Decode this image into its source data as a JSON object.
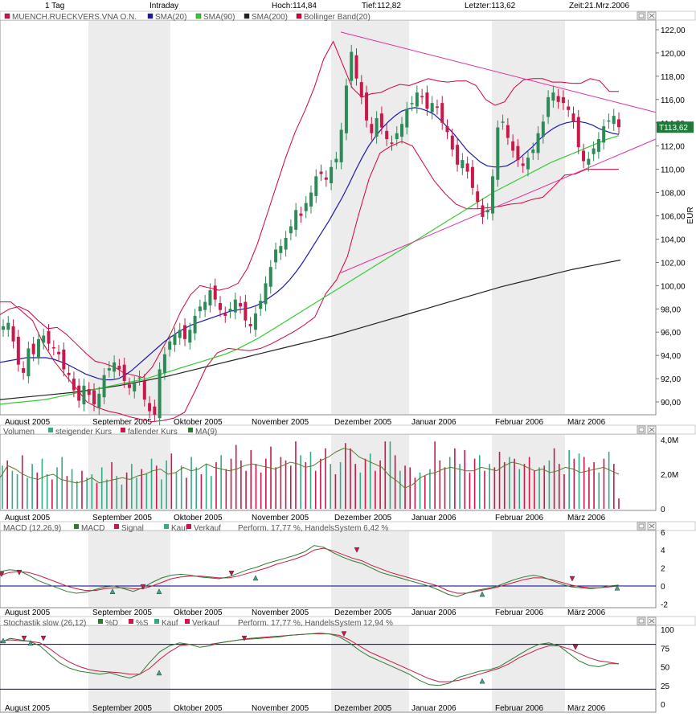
{
  "header": {
    "period": "1 Tag",
    "mode": "Intraday",
    "high": "Hoch:114,84",
    "low": "Tief:112,82",
    "last": "Letzter:113,62",
    "time": "Zeit:21.Mrz.2006"
  },
  "colors": {
    "price_up": "#2e8b57",
    "price_down": "#c8194a",
    "sma20": "#1a1aa8",
    "sma90": "#33cc33",
    "sma200": "#222222",
    "bollinger": "#d4003c",
    "trendline": "#e030a0",
    "macd": "#2f7a2f",
    "signal": "#c8194a",
    "month_shade": "#ececec"
  },
  "chart_data": [
    {
      "type": "candlestick",
      "name": "price_panel",
      "legend": [
        "MUENCH.RUECKVERS.VNA O.N.",
        "SMA(20)",
        "SMA(90)",
        "SMA(200)",
        "Bollinger Band(20)"
      ],
      "currency": "EUR",
      "last_price_label": "113,62",
      "ylim": [
        88.8,
        123.0
      ],
      "yticks": [
        "90,00",
        "92,00",
        "94,00",
        "96,00",
        "98,00",
        "100,00",
        "102,00",
        "104,00",
        "106,00",
        "108,00",
        "110,00",
        "112,00",
        "114,00",
        "116,00",
        "118,00",
        "120,00",
        "122,00"
      ],
      "xticks": [
        "August 2005",
        "September 2005",
        "Oktober 2005",
        "November 2005",
        "Dezember 2005",
        "Januar 2006",
        "Februar 2006",
        "März 2006"
      ],
      "close": [
        96.5,
        96.8,
        95.2,
        93.2,
        92.5,
        94.6,
        94.1,
        95.4,
        95.7,
        95.0,
        94.6,
        94.1,
        92.8,
        92.3,
        91.0,
        90.1,
        91.4,
        90.6,
        89.8,
        90.7,
        92.3,
        92.9,
        93.4,
        92.8,
        91.8,
        91.2,
        91.6,
        92.1,
        90.2,
        89.2,
        88.9,
        92.8,
        94.1,
        95.2,
        95.8,
        96.2,
        95.4,
        96.2,
        97.4,
        98.2,
        98.6,
        99.6,
        98.8,
        97.9,
        97.4,
        98.0,
        98.8,
        98.2,
        97.0,
        96.5,
        97.6,
        98.7,
        100.2,
        101.6,
        103.1,
        103.4,
        104.1,
        105.1,
        106.5,
        106.0,
        107.1,
        108.0,
        109.4,
        109.6,
        109.1,
        110.2,
        110.9,
        113.4,
        117.2,
        120.1,
        117.8,
        116.2,
        114.2,
        113.1,
        114.4,
        113.6,
        112.6,
        112.2,
        113.1,
        113.9,
        115.2,
        115.7,
        116.6,
        116.2,
        115.2,
        115.7,
        115.3,
        114.0,
        113.2,
        111.7,
        110.4,
        110.8,
        109.8,
        108.4,
        107.2,
        105.9,
        106.5,
        109.4,
        113.6,
        114.1,
        112.7,
        111.6,
        110.8,
        110.3,
        111.0,
        111.7,
        113.1,
        114.1,
        116.2,
        116.6,
        115.8,
        115.7,
        115.1,
        114.1,
        111.9,
        110.7,
        110.9,
        111.8,
        112.6,
        113.7,
        114.2,
        114.6,
        113.62
      ],
      "sma20": [
        93.4,
        93.5,
        93.6,
        93.7,
        93.8,
        93.8,
        93.8,
        93.8,
        93.7,
        93.5,
        93.3,
        93.0,
        92.7,
        92.4,
        92.2,
        92.0,
        91.9,
        91.9,
        92.0,
        92.3,
        92.7,
        93.2,
        93.7,
        94.2,
        94.7,
        95.2,
        95.6,
        96.0,
        96.3,
        96.6,
        96.8,
        97.0,
        97.2,
        97.4,
        97.6,
        97.8,
        97.9,
        98.0,
        98.1,
        98.3,
        98.6,
        99.0,
        99.4,
        99.9,
        100.5,
        101.2,
        102.0,
        102.9,
        103.8,
        104.7,
        105.6,
        106.6,
        107.6,
        108.7,
        109.9,
        111.0,
        112.0,
        112.8,
        113.5,
        114.1,
        114.6,
        115.0,
        115.2,
        115.3,
        115.2,
        115.0,
        114.7,
        114.2,
        113.6,
        113.0,
        112.3,
        111.6,
        111.1,
        110.6,
        110.3,
        110.2,
        110.2,
        110.3,
        110.6,
        111.0,
        111.5,
        112.0,
        112.6,
        113.1,
        113.5,
        113.8,
        114.0,
        114.1,
        114.1,
        114.0,
        113.8,
        113.5,
        113.3,
        113.1,
        113.0
      ],
      "sma90": [
        89.8,
        89.9,
        90.0,
        90.1,
        90.2,
        90.4,
        90.6,
        90.8,
        91.0,
        91.2,
        91.4,
        91.6,
        91.8,
        92.0,
        92.3,
        92.6,
        92.9,
        93.2,
        93.5,
        93.8,
        94.1,
        94.5,
        95.0,
        95.5,
        96.1,
        96.7,
        97.3,
        97.9,
        98.5,
        99.1,
        99.7,
        100.3,
        100.9,
        101.5,
        102.1,
        102.7,
        103.3,
        103.9,
        104.5,
        105.1,
        105.7,
        106.3,
        106.9,
        107.5,
        108.1,
        108.6,
        109.1,
        109.6,
        110.1,
        110.6,
        111.0,
        111.4,
        111.8,
        112.2,
        112.6,
        112.9
      ],
      "sma200": [
        90.2,
        90.4,
        90.6,
        90.8,
        91.1,
        91.4,
        91.8,
        92.2,
        92.7,
        93.2,
        93.7,
        94.2,
        94.7,
        95.2,
        95.7,
        96.3,
        96.9,
        97.5,
        98.1,
        98.7,
        99.3,
        99.9,
        100.4,
        100.9,
        101.4,
        101.8,
        102.2
      ],
      "bollinger_upper": [
        97.5,
        98.0,
        98.2,
        97.8,
        97.0,
        96.3,
        96.4,
        95.8,
        95.0,
        94.2,
        93.5,
        93.3,
        93.0,
        92.5,
        92.3,
        92.1,
        93.0,
        94.5,
        96.0,
        97.8,
        99.2,
        100.0,
        99.8,
        99.6,
        99.8,
        100.2,
        101.5,
        103.5,
        106.0,
        108.5,
        111.0,
        113.2,
        115.0,
        117.0,
        119.5,
        121.0,
        119.0,
        117.0,
        116.2,
        116.5,
        116.6,
        117.0,
        117.3,
        117.2,
        117.5,
        117.8,
        117.6,
        117.5,
        117.6,
        117.6,
        117.2,
        116.0,
        115.5,
        115.8,
        117.0,
        117.7,
        117.8,
        117.8,
        117.5,
        117.5,
        117.4,
        117.4,
        117.8,
        117.6,
        116.7,
        116.7
      ],
      "bollinger_lower": [
        98.6,
        98.6,
        97.8,
        97.0,
        95.0,
        93.5,
        92.3,
        91.2,
        90.0,
        89.5,
        89.2,
        89.0,
        88.7,
        88.5,
        88.3,
        88.4,
        88.6,
        89.1,
        91.0,
        93.0,
        94.2,
        94.6,
        94.5,
        94.4,
        94.6,
        95.0,
        95.5,
        96.0,
        96.6,
        97.3,
        99.3,
        100.5,
        102.5,
        106.0,
        109.2,
        111.4,
        112.0,
        112.4,
        112.0,
        110.5,
        109.0,
        107.9,
        107.0,
        106.6,
        106.6,
        106.7,
        106.8,
        107.0,
        107.1,
        107.4,
        107.6,
        108.5,
        109.5,
        109.6,
        110.0,
        110.0,
        110.0,
        110.0
      ]
    },
    {
      "type": "bar",
      "name": "volume_panel",
      "legend": [
        "Volumen",
        "steigender Kurs",
        "fallender Kurs",
        "MA(9)"
      ],
      "yticks": [
        "4,0M",
        "2,0M",
        "0"
      ],
      "ylim": [
        0,
        4.0
      ],
      "unit": "M",
      "values": [
        2.5,
        2.8,
        2.2,
        2.0,
        3.1,
        1.8,
        2.6,
        2.1,
        2.9,
        2.0,
        1.7,
        2.4,
        3.0,
        1.9,
        2.3,
        1.6,
        2.2,
        1.8,
        2.0,
        1.5,
        2.4,
        1.7,
        2.7,
        1.9,
        1.4,
        2.1,
        2.6,
        1.8,
        2.3,
        2.0,
        2.9,
        2.5,
        1.7,
        2.8,
        3.2,
        2.1,
        2.5,
        1.8,
        3.0,
        2.4,
        2.0,
        2.6,
        1.9,
        2.7,
        3.1,
        2.3,
        2.9,
        3.7,
        2.8,
        2.2,
        3.4,
        2.6,
        2.1,
        2.9,
        3.6,
        2.4,
        3.0,
        2.8,
        2.5,
        3.9,
        3.1,
        2.7,
        3.3,
        2.2,
        2.9,
        3.5,
        2.6,
        2.0,
        2.7,
        3.8,
        3.5,
        2.6,
        2.1,
        2.9,
        3.2,
        2.2,
        2.8,
        3.9,
        3.9,
        3.1,
        2.2,
        2.5,
        2.4,
        1.8,
        2.1,
        1.9,
        2.3,
        3.9,
        2.8,
        2.4,
        3.0,
        3.5,
        2.6,
        3.4,
        2.1,
        2.9,
        3.1,
        2.2,
        2.6,
        2.4,
        3.3,
        2.7,
        3.0,
        2.9,
        2.3,
        2.6,
        3.0,
        2.2,
        2.4,
        2.5,
        2.8,
        3.5,
        2.6,
        2.0,
        3.4,
        2.9,
        3.2,
        3.0,
        2.4,
        2.7,
        2.1,
        2.9,
        3.3,
        2.6,
        0.6
      ],
      "ma9": [
        1.8,
        2.5,
        2.3,
        2.0,
        1.8,
        1.7,
        1.9,
        2.0,
        1.7,
        1.6,
        1.5,
        1.6,
        1.8,
        1.5,
        1.6,
        1.7,
        1.8,
        1.7,
        1.9,
        2.0,
        2.2,
        2.3,
        2.0,
        2.1,
        2.4,
        2.2,
        2.3,
        2.6,
        2.4,
        2.3,
        2.2,
        2.3,
        2.5,
        2.6,
        2.5,
        2.4,
        2.3,
        2.5,
        2.7,
        2.6,
        2.4,
        2.5,
        2.8,
        3.0,
        3.3,
        3.5,
        3.4,
        3.0,
        2.8,
        2.6,
        2.4,
        1.9,
        1.6,
        1.2,
        1.4,
        1.8,
        2.0,
        2.1,
        2.3,
        2.4,
        2.3,
        2.2,
        2.2,
        2.4,
        2.3,
        2.2,
        2.5,
        2.7,
        2.6,
        2.4,
        2.2,
        2.3,
        2.1,
        2.2,
        2.4,
        2.3,
        2.1,
        2.2,
        2.3,
        2.4,
        2.2,
        2.0
      ]
    },
    {
      "type": "line",
      "name": "macd_panel",
      "legend": [
        "MACD (12,26,9)",
        "MACD",
        "Signal",
        "Kauf",
        "Verkauf",
        "Perform. 17,77 %, HandelsSystem 6,42 %"
      ],
      "yticks": [
        "6",
        "4",
        "2",
        "0",
        "-2"
      ],
      "ylim": [
        -2.8,
        6.2
      ],
      "macd": [
        1.6,
        1.8,
        1.7,
        1.2,
        0.6,
        0.2,
        -0.2,
        -0.6,
        -0.8,
        -0.7,
        -0.4,
        -0.1,
        0.0,
        -0.3,
        -0.6,
        -0.2,
        0.4,
        0.9,
        1.2,
        1.3,
        1.2,
        1.0,
        0.9,
        0.8,
        1.0,
        1.4,
        1.8,
        2.1,
        2.5,
        2.8,
        3.1,
        3.4,
        3.8,
        4.5,
        4.3,
        3.7,
        3.2,
        2.8,
        2.5,
        2.0,
        1.5,
        1.2,
        0.9,
        0.6,
        0.3,
        0.0,
        -0.4,
        -0.9,
        -1.2,
        -0.8,
        -0.5,
        -0.3,
        -0.1,
        0.3,
        0.7,
        1.0,
        1.2,
        1.0,
        0.6,
        0.2,
        -0.1,
        -0.2,
        -0.3,
        -0.2,
        0.0,
        0.1
      ],
      "signal": [
        1.2,
        1.5,
        1.6,
        1.5,
        1.2,
        0.8,
        0.4,
        0.0,
        -0.3,
        -0.5,
        -0.5,
        -0.3,
        -0.2,
        -0.2,
        -0.3,
        -0.3,
        0.0,
        0.4,
        0.8,
        1.0,
        1.1,
        1.1,
        1.0,
        0.9,
        0.9,
        1.1,
        1.4,
        1.7,
        2.0,
        2.4,
        2.7,
        3.0,
        3.4,
        4.0,
        4.2,
        3.9,
        3.5,
        3.1,
        2.8,
        2.3,
        1.9,
        1.5,
        1.2,
        0.9,
        0.6,
        0.3,
        0.0,
        -0.5,
        -0.8,
        -0.8,
        -0.6,
        -0.4,
        -0.2,
        0.1,
        0.4,
        0.7,
        0.9,
        0.9,
        0.7,
        0.4,
        0.1,
        -0.1,
        -0.2,
        -0.2,
        -0.1,
        0.0
      ]
    },
    {
      "type": "line",
      "name": "stochastic_panel",
      "legend": [
        "Stochastik slow (26,12)",
        "%D",
        "%S",
        "Kauf",
        "Verkauf",
        "Perform. 17,77 %, HandelsSystem 12,94 %"
      ],
      "yticks": [
        "100",
        "75",
        "50",
        "25",
        "0"
      ],
      "ylim": [
        0,
        105
      ],
      "levels": [
        80,
        20
      ],
      "d": [
        82,
        88,
        86,
        84,
        78,
        66,
        55,
        48,
        44,
        42,
        40,
        42,
        38,
        35,
        40,
        56,
        70,
        78,
        82,
        80,
        76,
        78,
        82,
        84,
        86,
        87,
        88,
        89,
        90,
        92,
        93,
        94,
        95,
        94,
        90,
        82,
        72,
        64,
        58,
        52,
        46,
        40,
        32,
        26,
        25,
        28,
        36,
        40,
        44,
        46,
        50,
        58,
        66,
        74,
        80,
        82,
        78,
        68,
        58,
        52,
        50,
        54,
        54
      ],
      "s": [
        84,
        86,
        85,
        84,
        82,
        74,
        64,
        56,
        50,
        46,
        44,
        43,
        42,
        40,
        40,
        48,
        60,
        70,
        78,
        80,
        80,
        80,
        82,
        84,
        86,
        88,
        89,
        90,
        91,
        92,
        93,
        94,
        94,
        94,
        92,
        86,
        78,
        70,
        64,
        58,
        52,
        46,
        40,
        34,
        30,
        30,
        32,
        36,
        40,
        44,
        48,
        54,
        62,
        68,
        74,
        78,
        78,
        74,
        68,
        62,
        58,
        56,
        54
      ]
    }
  ]
}
